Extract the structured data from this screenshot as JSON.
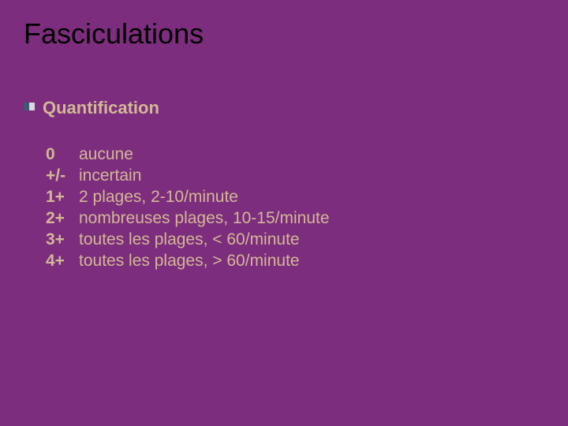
{
  "colors": {
    "background": "#7d2d7d",
    "title_text": "#000000",
    "body_text": "#d2b896",
    "bullet_left": "#3a5a78",
    "bullet_right": "#d8d8e0"
  },
  "typography": {
    "title_fontsize": 36,
    "subtitle_fontsize": 22,
    "body_fontsize": 21,
    "font_family": "Arial"
  },
  "title": "Fasciculations",
  "subtitle": "Quantification",
  "scale": [
    {
      "key": "0",
      "value": "aucune"
    },
    {
      "key": "+/-",
      "value": "incertain"
    },
    {
      "key": "1+",
      "value": "2 plages, 2-10/minute"
    },
    {
      "key": "2+",
      "value": "nombreuses plages, 10-15/minute"
    },
    {
      "key": "3+",
      "value": "toutes les plages, < 60/minute"
    },
    {
      "key": "4+",
      "value": "toutes les plages, > 60/minute"
    }
  ]
}
